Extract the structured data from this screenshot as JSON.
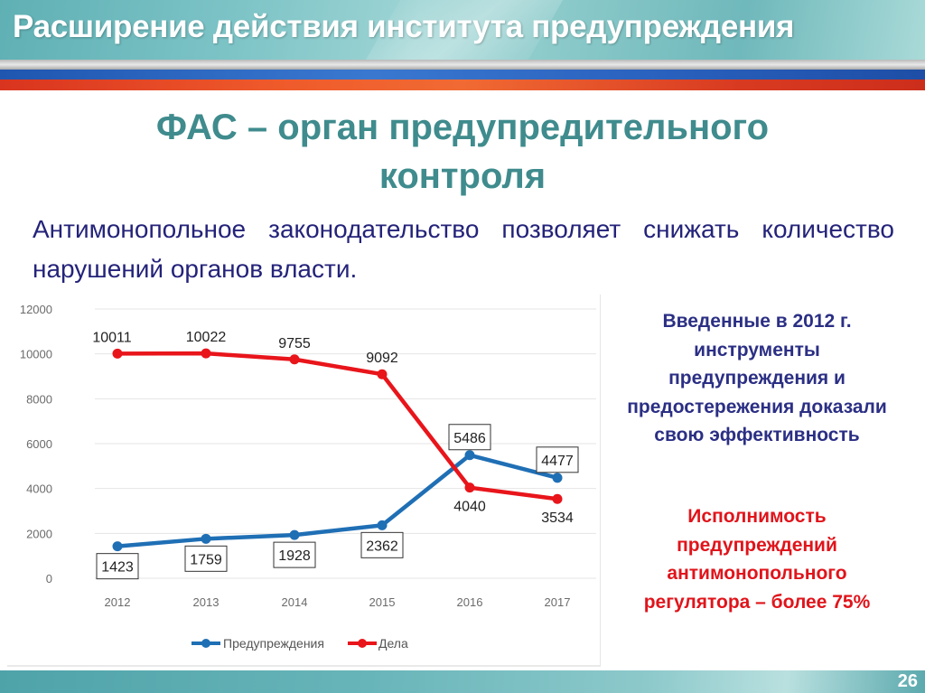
{
  "header": {
    "title": "Расширение действия института предупреждения"
  },
  "subtitle": {
    "line1": "ФАС – орган предупредительного",
    "line2": "контроля"
  },
  "lead_text": "Антимонопольное законодательство позволяет снижать количество нарушений органов власти.",
  "side_notes": {
    "blue": {
      "lines": [
        "Введенные в 2012 г.",
        "инструменты",
        "предупреждения и",
        "предостережения доказали",
        "свою эффективность"
      ],
      "color": "#2b2f84"
    },
    "red": {
      "lines": [
        "Исполнимость",
        "предупреждений",
        "антимонопольного",
        "регулятора – более 75%"
      ],
      "color": "#e0141b"
    }
  },
  "footer": {
    "page_number": "26"
  },
  "chart_data": {
    "type": "line",
    "title": "",
    "xlabel": "",
    "ylabel": "",
    "categories": [
      "2012",
      "2013",
      "2014",
      "2015",
      "2016",
      "2017"
    ],
    "series": [
      {
        "name": "Предупреждения",
        "color": "#1f6fb5",
        "values": [
          1423,
          1759,
          1928,
          2362,
          5486,
          4477
        ],
        "labels_boxed": true
      },
      {
        "name": "Дела",
        "color": "#e8151b",
        "values": [
          10011,
          10022,
          9755,
          9092,
          4040,
          3534
        ],
        "labels_boxed": false
      }
    ],
    "yticks": [
      "0",
      "2000",
      "4000",
      "6000",
      "8000",
      "10000",
      "12000"
    ],
    "ylim": [
      0,
      12000
    ],
    "grid": true,
    "legend_position": "bottom"
  }
}
